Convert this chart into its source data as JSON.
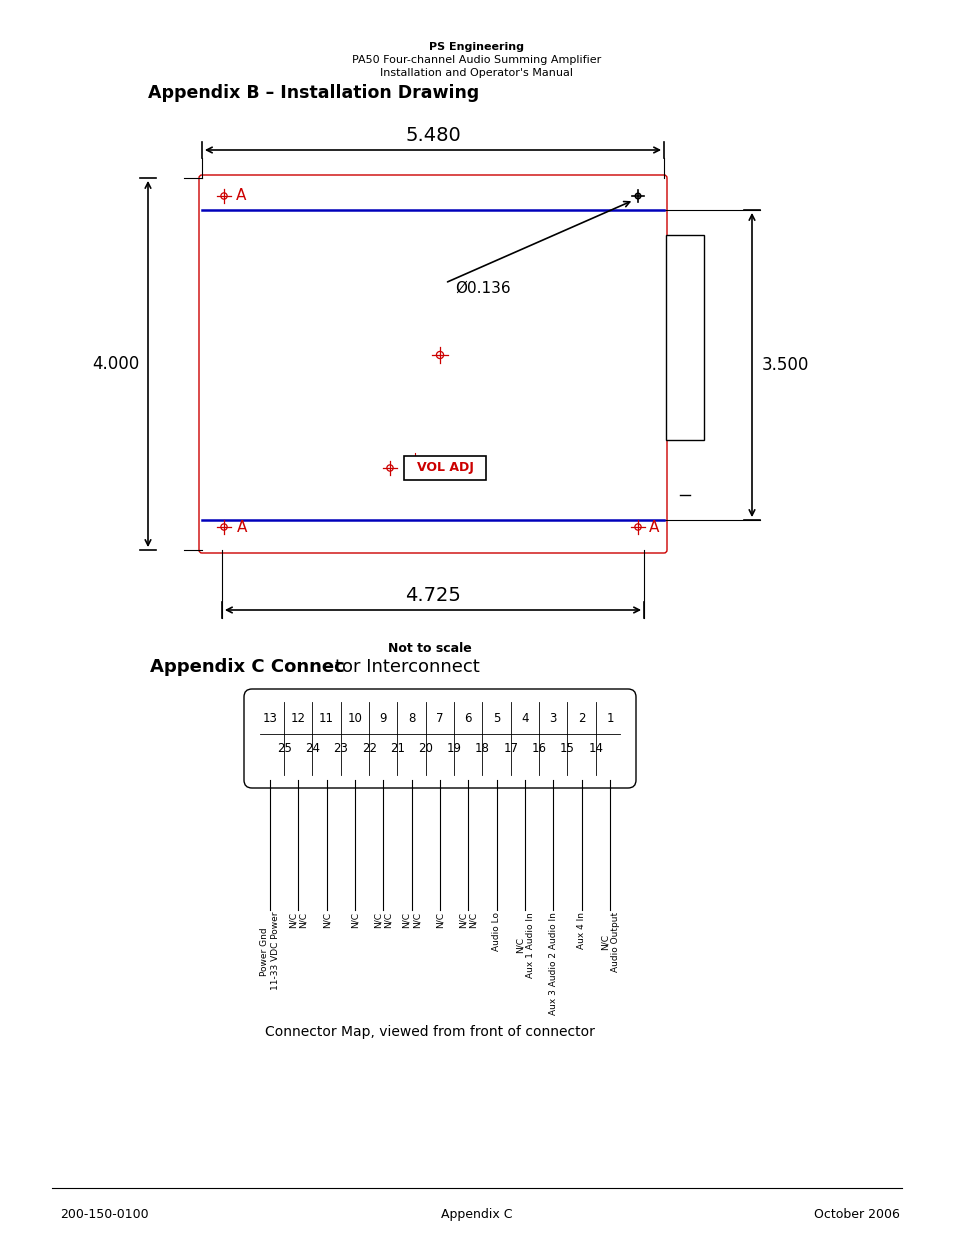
{
  "header_line1": "PS Engineering",
  "header_line2": "PA50 Four-channel Audio Summing Amplifier",
  "header_line3": "Installation and Operator's Manual",
  "appendix_b_title": "Appendix B – Installation Drawing",
  "dim_5480": "5.480",
  "dim_4725": "4.725",
  "dim_4000": "4.000",
  "dim_3500": "3.500",
  "dim_hole": "Ø0.136",
  "vol_adj_label": "VOL ADJ",
  "label_A": "A",
  "not_to_scale": "Not to scale",
  "appendix_c_title_bold": "Appendix C Connec",
  "appendix_c_title_normal": "tor Interconnect",
  "connector_caption": "Connector Map, viewed from front of connector",
  "row1_numbers": [
    "13",
    "12",
    "11",
    "10",
    "9",
    "8",
    "7",
    "6",
    "5",
    "4",
    "3",
    "2",
    "1"
  ],
  "row2_numbers": [
    "25",
    "24",
    "23",
    "22",
    "21",
    "20",
    "19",
    "18",
    "17",
    "16",
    "15",
    "14"
  ],
  "col_labels": [
    [
      "Power Gnd",
      "11-33 VDC Power"
    ],
    [
      "N/C",
      "N/C"
    ],
    [
      "N/C"
    ],
    [
      "N/C"
    ],
    [
      "N/C",
      "N/C"
    ],
    [
      "N/C",
      "N/C"
    ],
    [
      "N/C"
    ],
    [
      "N/C",
      "N/C"
    ],
    [
      "Audio Lo"
    ],
    [
      "N/C",
      "Aux 1 Audio In"
    ],
    [
      "Aux 3 Audio 2 Audio In"
    ],
    [
      "Aux 4 In"
    ],
    [
      "N/C",
      "Audio Output"
    ]
  ],
  "footer_left": "200-150-0100",
  "footer_center": "Appendix C",
  "footer_right": "October 2006",
  "bg_color": "#ffffff",
  "drawing_color": "#000000",
  "red_color": "#cc0000",
  "blue_color": "#0000bb"
}
